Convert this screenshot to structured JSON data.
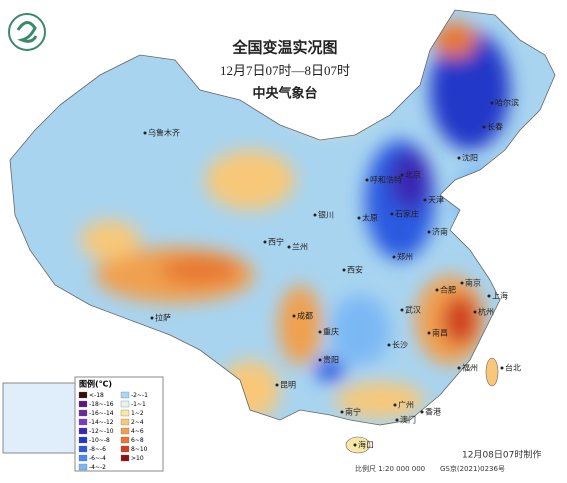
{
  "header": {
    "title": "全国变温实况图",
    "period": "12月7日07时—8日07时",
    "agency": "中央气象台"
  },
  "legend": {
    "title": "图例(℃)",
    "items": [
      {
        "label": "<-18",
        "color": "#3a0a0a"
      },
      {
        "label": "-18~-16",
        "color": "#5a1a6e"
      },
      {
        "label": "-16~-14",
        "color": "#6a2a9a"
      },
      {
        "label": "-14~-12",
        "color": "#7a3ac8"
      },
      {
        "label": "-12~-10",
        "color": "#3a28b4"
      },
      {
        "label": "-10~-8",
        "color": "#2038c8"
      },
      {
        "label": "-8~-6",
        "color": "#2a5ae0"
      },
      {
        "label": "-6~-4",
        "color": "#4a8af0"
      },
      {
        "label": "-4~-2",
        "color": "#7ab8f4"
      },
      {
        "label": "-2~-1",
        "color": "#a8d8f8"
      },
      {
        "label": "-1~1",
        "color": "#e8f4f0"
      },
      {
        "label": "1~2",
        "color": "#f8e8a8"
      },
      {
        "label": "2~4",
        "color": "#f8c878"
      },
      {
        "label": "4~6",
        "color": "#f0a050"
      },
      {
        "label": "6~8",
        "color": "#e87830"
      },
      {
        "label": "8~10",
        "color": "#d04020"
      },
      {
        "label": ">10",
        "color": "#901010"
      }
    ]
  },
  "cities": [
    "乌鲁木齐",
    "哈尔滨",
    "长春",
    "沈阳",
    "呼和浩特",
    "北京",
    "天津",
    "石家庄",
    "太原",
    "济南",
    "银川",
    "西宁",
    "兰州",
    "西安",
    "郑州",
    "拉萨",
    "成都",
    "重庆",
    "武汉",
    "合肥",
    "南京",
    "上海",
    "杭州",
    "长沙",
    "南昌",
    "福州",
    "贵阳",
    "昆明",
    "南宁",
    "广州",
    "香港",
    "澳门",
    "海口",
    "台北"
  ],
  "footer": {
    "made": "12月08日07时制作",
    "scale": "比例尺 1:20 000 000",
    "license": "GS京(2021)0236号"
  }
}
